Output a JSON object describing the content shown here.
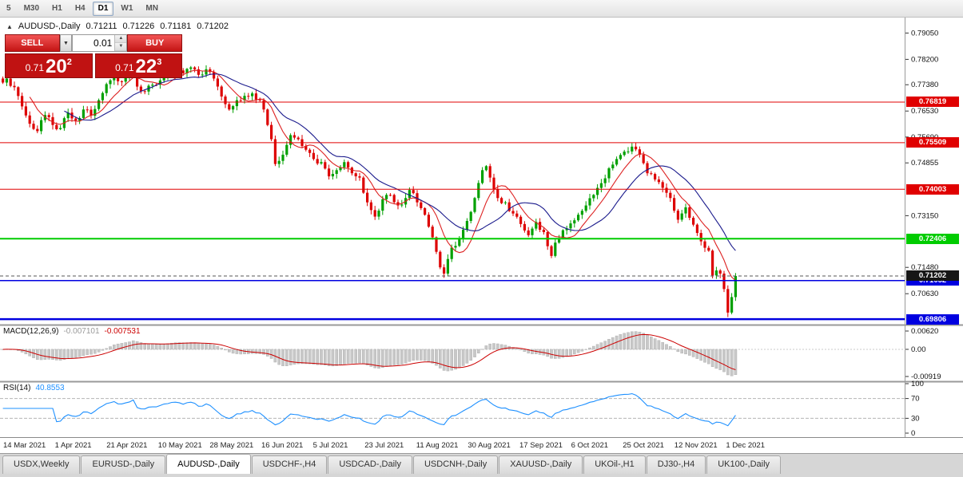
{
  "toolbar": {
    "timeframes": [
      {
        "label": "5",
        "active": false
      },
      {
        "label": "M30",
        "active": false
      },
      {
        "label": "H1",
        "active": false
      },
      {
        "label": "H4",
        "active": false
      },
      {
        "label": "D1",
        "active": true
      },
      {
        "label": "W1",
        "active": false
      },
      {
        "label": "MN",
        "active": false
      }
    ]
  },
  "quote_header": {
    "collapse_icon": "▲",
    "symbol": "AUDUSD-,Daily",
    "open": "0.71211",
    "high": "0.71226",
    "low": "0.71181",
    "close": "0.71202"
  },
  "trade_panel": {
    "sell_label": "SELL",
    "buy_label": "BUY",
    "lot_size": "0.01",
    "dropdown_icon": "▼",
    "spinner_up_icon": "▲",
    "spinner_down_icon": "▼",
    "sell_price": {
      "prefix": "0.71",
      "main": "20",
      "sup": "2"
    },
    "buy_price": {
      "prefix": "0.71",
      "main": "22",
      "sup": "3"
    }
  },
  "price_axis": {
    "ticks": [
      "0.79050",
      "0.78200",
      "0.77380",
      "0.76530",
      "0.75690",
      "0.74855",
      "0.73150",
      "0.71480",
      "0.70630"
    ],
    "badges": [
      {
        "text": "0.76819",
        "price": 0.76819,
        "bg": "#E00000",
        "fg": "#FFFFFF"
      },
      {
        "text": "0.75509",
        "price": 0.75509,
        "bg": "#E00000",
        "fg": "#FFFFFF"
      },
      {
        "text": "0.74003",
        "price": 0.74003,
        "bg": "#E00000",
        "fg": "#FFFFFF"
      },
      {
        "text": "0.72406",
        "price": 0.72406,
        "bg": "#00CC00",
        "fg": "#FFFFFF"
      },
      {
        "text": "0.69806",
        "price": 0.69806,
        "bg": "#0000E0",
        "fg": "#FFFFFF"
      },
      {
        "text": "0.71052",
        "price": 0.71052,
        "bg": "#0000E0",
        "fg": "#FFFFFF"
      },
      {
        "text": "0.71202",
        "price": 0.71202,
        "bg": "#161616",
        "fg": "#FFFFFF"
      }
    ]
  },
  "hlines": [
    {
      "price": 0.76819,
      "color": "#E00000",
      "w": 1
    },
    {
      "price": 0.75509,
      "color": "#E00000",
      "w": 1
    },
    {
      "price": 0.74003,
      "color": "#E00000",
      "w": 1
    },
    {
      "price": 0.72406,
      "color": "#00CC00",
      "w": 2
    },
    {
      "price": 0.71052,
      "color": "#0000E0",
      "w": 1.5
    },
    {
      "price": 0.69806,
      "color": "#0000E0",
      "w": 2.5
    }
  ],
  "panes": {
    "macd": {
      "label": "MACD(12,26,9)",
      "value_main": "-0.007101",
      "value_signal": "-0.007531",
      "ticks": [
        "0.00620",
        "0.00",
        "-0.00919"
      ]
    },
    "rsi": {
      "label": "RSI(14)",
      "value": "40.8553",
      "ticks": [
        "100",
        "70",
        "30",
        "0"
      ],
      "levels": [
        70,
        30
      ]
    }
  },
  "time_axis": {
    "labels": [
      "14 Mar 2021",
      "1 Apr 2021",
      "21 Apr 2021",
      "10 May 2021",
      "28 May 2021",
      "16 Jun 2021",
      "5 Jul 2021",
      "23 Jul 2021",
      "11 Aug 2021",
      "30 Aug 2021",
      "17 Sep 2021",
      "6 Oct 2021",
      "25 Oct 2021",
      "12 Nov 2021",
      "1 Dec 2021"
    ]
  },
  "tabs": [
    {
      "label": "USDX,Weekly",
      "active": false
    },
    {
      "label": "EURUSD-,Daily",
      "active": false
    },
    {
      "label": "AUDUSD-,Daily",
      "active": true
    },
    {
      "label": "USDCHF-,H4",
      "active": false
    },
    {
      "label": "USDCAD-,Daily",
      "active": false
    },
    {
      "label": "USDCNH-,Daily",
      "active": false
    },
    {
      "label": "XAUUSD-,Daily",
      "active": false
    },
    {
      "label": "UKOil-,H1",
      "active": false
    },
    {
      "label": "DJ30-,H4",
      "active": false
    },
    {
      "label": "UK100-,Daily",
      "active": false
    }
  ],
  "chart_data": {
    "type": "candlestick",
    "symbol": "AUDUSD-",
    "timeframe": "Daily",
    "bars": 192,
    "bar_spacing": 4.8,
    "price_top": 0.7955,
    "price_bottom": 0.6963,
    "anchors": [
      [
        0,
        0.7745
      ],
      [
        1,
        0.7758
      ],
      [
        3,
        0.773
      ],
      [
        5,
        0.7668
      ],
      [
        7,
        0.7612
      ],
      [
        9,
        0.7588
      ],
      [
        11,
        0.764
      ],
      [
        13,
        0.7608
      ],
      [
        15,
        0.7598
      ],
      [
        17,
        0.7648
      ],
      [
        19,
        0.7622
      ],
      [
        21,
        0.7658
      ],
      [
        23,
        0.7638
      ],
      [
        25,
        0.7688
      ],
      [
        27,
        0.774
      ],
      [
        29,
        0.7768
      ],
      [
        31,
        0.7748
      ],
      [
        33,
        0.7772
      ],
      [
        34,
        0.78
      ],
      [
        35,
        0.7732
      ],
      [
        37,
        0.7716
      ],
      [
        39,
        0.7738
      ],
      [
        41,
        0.7752
      ],
      [
        43,
        0.7772
      ],
      [
        45,
        0.7788
      ],
      [
        47,
        0.7775
      ],
      [
        49,
        0.7794
      ],
      [
        51,
        0.777
      ],
      [
        53,
        0.7788
      ],
      [
        55,
        0.7758
      ],
      [
        57,
        0.77
      ],
      [
        59,
        0.7658
      ],
      [
        61,
        0.7688
      ],
      [
        63,
        0.7702
      ],
      [
        65,
        0.771
      ],
      [
        67,
        0.7688
      ],
      [
        68,
        0.7658
      ],
      [
        69,
        0.7608
      ],
      [
        70,
        0.7562
      ],
      [
        71,
        0.7482
      ],
      [
        72,
        0.7492
      ],
      [
        73,
        0.7512
      ],
      [
        75,
        0.7575
      ],
      [
        77,
        0.7562
      ],
      [
        79,
        0.7528
      ],
      [
        81,
        0.7498
      ],
      [
        83,
        0.7488
      ],
      [
        85,
        0.7442
      ],
      [
        87,
        0.7462
      ],
      [
        89,
        0.7488
      ],
      [
        91,
        0.7452
      ],
      [
        93,
        0.7438
      ],
      [
        95,
        0.7358
      ],
      [
        97,
        0.7312
      ],
      [
        99,
        0.7368
      ],
      [
        101,
        0.7382
      ],
      [
        103,
        0.7348
      ],
      [
        105,
        0.7372
      ],
      [
        106,
        0.7398
      ],
      [
        108,
        0.7358
      ],
      [
        110,
        0.7318
      ],
      [
        112,
        0.7245
      ],
      [
        114,
        0.7148
      ],
      [
        115,
        0.7128
      ],
      [
        117,
        0.7212
      ],
      [
        119,
        0.7242
      ],
      [
        121,
        0.7298
      ],
      [
        123,
        0.7372
      ],
      [
        125,
        0.7462
      ],
      [
        126,
        0.7475
      ],
      [
        127,
        0.7438
      ],
      [
        129,
        0.7372
      ],
      [
        131,
        0.7358
      ],
      [
        133,
        0.7322
      ],
      [
        135,
        0.7288
      ],
      [
        137,
        0.7252
      ],
      [
        139,
        0.7295
      ],
      [
        141,
        0.7262
      ],
      [
        143,
        0.7185
      ],
      [
        144,
        0.7228
      ],
      [
        146,
        0.7268
      ],
      [
        148,
        0.729
      ],
      [
        150,
        0.7318
      ],
      [
        152,
        0.7348
      ],
      [
        154,
        0.7382
      ],
      [
        156,
        0.742
      ],
      [
        158,
        0.7468
      ],
      [
        160,
        0.7498
      ],
      [
        162,
        0.7522
      ],
      [
        164,
        0.7538
      ],
      [
        166,
        0.7512
      ],
      [
        168,
        0.7452
      ],
      [
        170,
        0.7432
      ],
      [
        172,
        0.7405
      ],
      [
        174,
        0.7372
      ],
      [
        176,
        0.7302
      ],
      [
        178,
        0.7342
      ],
      [
        180,
        0.7286
      ],
      [
        182,
        0.7232
      ],
      [
        184,
        0.7202
      ],
      [
        185,
        0.7122
      ],
      [
        186,
        0.7138
      ],
      [
        187,
        0.7128
      ],
      [
        188,
        0.7078
      ],
      [
        189,
        0.7002
      ],
      [
        190,
        0.7052
      ],
      [
        191,
        0.71202
      ]
    ],
    "indicators": {
      "ma_fast": 8,
      "ma_slow": 17,
      "macd": [
        12,
        26,
        9
      ],
      "rsi": 14
    },
    "colors": {
      "up": "#00A000",
      "down": "#DD0000",
      "ma_fast": "#DD2222",
      "ma_slow": "#1A1A8C",
      "macd_hist": "#C8C8C8",
      "macd_hist_border": "#AAAAAA",
      "macd_signal": "#CC0000",
      "rsi": "#1E90FF"
    }
  }
}
